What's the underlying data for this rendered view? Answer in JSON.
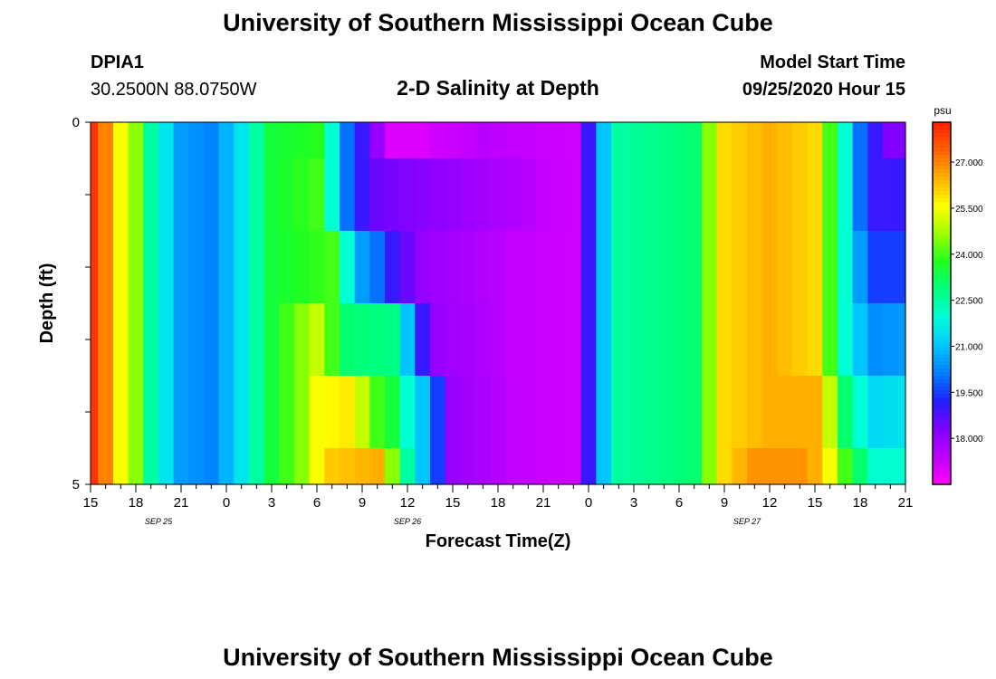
{
  "page": {
    "title_top": "University of Southern Mississippi Ocean Cube",
    "title_bottom": "University of Southern Mississippi Ocean Cube",
    "station_id": "DPIA1",
    "coordinates": "30.2500N 88.0750W",
    "plot_title": "2-D Salinity at Depth",
    "model_start_label": "Model Start Time",
    "model_start_value": "09/25/2020 Hour 15"
  },
  "chart_data": {
    "type": "heatmap",
    "title": "2-D Salinity at Depth",
    "xlabel": "Forecast Time(Z)",
    "ylabel": "Depth (ft)",
    "units": "psu",
    "y_ticks": [
      "0",
      "5"
    ],
    "x_tick_labels": [
      "15",
      "18",
      "21",
      "0",
      "3",
      "6",
      "9",
      "12",
      "15",
      "18",
      "21",
      "0",
      "3",
      "6",
      "9",
      "12",
      "15",
      "18",
      "21"
    ],
    "date_labels": [
      {
        "label": "SEP 25",
        "hour_index": 4.5
      },
      {
        "label": "SEP 26",
        "hour_index": 21
      },
      {
        "label": "SEP 27",
        "hour_index": 43.5
      }
    ],
    "hours": 55,
    "colorbar": {
      "min": 16.5,
      "max": 28.3,
      "ticks": [
        "27.000",
        "25.500",
        "24.000",
        "22.500",
        "21.000",
        "19.500",
        "18.000"
      ],
      "tick_values": [
        27.0,
        25.5,
        24.0,
        22.5,
        21.0,
        19.5,
        18.0
      ]
    },
    "depth_layers": [
      {
        "depth": "0.25",
        "keyframes": [
          [
            0,
            28
          ],
          [
            1,
            27
          ],
          [
            2,
            25.5
          ],
          [
            3,
            24.5
          ],
          [
            4,
            22.5
          ],
          [
            5,
            21.5
          ],
          [
            6,
            20.5
          ],
          [
            8,
            20.2
          ],
          [
            9,
            20.8
          ],
          [
            10,
            21.5
          ],
          [
            11,
            22.5
          ],
          [
            12,
            23.5
          ],
          [
            15,
            23.8
          ],
          [
            16,
            22
          ],
          [
            17,
            20
          ],
          [
            18,
            19
          ],
          [
            20,
            17
          ],
          [
            22,
            17
          ],
          [
            23,
            17.2
          ],
          [
            26,
            17.5
          ],
          [
            32,
            17.2
          ],
          [
            33,
            19
          ],
          [
            34,
            21
          ],
          [
            35,
            22.5
          ],
          [
            40,
            23
          ],
          [
            41,
            24.5
          ],
          [
            42,
            26
          ],
          [
            45,
            26.5
          ],
          [
            48,
            26
          ],
          [
            49,
            24
          ],
          [
            50,
            22
          ],
          [
            51,
            20
          ],
          [
            52,
            19
          ],
          [
            53,
            18.3
          ],
          [
            54,
            18.3
          ]
        ]
      },
      {
        "depth": "1.0",
        "keyframes": [
          [
            0,
            28
          ],
          [
            1,
            27
          ],
          [
            2,
            25.5
          ],
          [
            3,
            24.5
          ],
          [
            4,
            22.5
          ],
          [
            5,
            21.5
          ],
          [
            6,
            20.5
          ],
          [
            8,
            20.2
          ],
          [
            9,
            20.8
          ],
          [
            10,
            21.5
          ],
          [
            11,
            22.5
          ],
          [
            12,
            23.5
          ],
          [
            15,
            24
          ],
          [
            16,
            22
          ],
          [
            17,
            20
          ],
          [
            18,
            19
          ],
          [
            19,
            18.5
          ],
          [
            32,
            17.2
          ],
          [
            33,
            19
          ],
          [
            34,
            21
          ],
          [
            35,
            22.5
          ],
          [
            40,
            23
          ],
          [
            41,
            24.5
          ],
          [
            42,
            26
          ],
          [
            45,
            26.5
          ],
          [
            48,
            26
          ],
          [
            49,
            24
          ],
          [
            50,
            22
          ],
          [
            51,
            20
          ],
          [
            52,
            19
          ],
          [
            54,
            19
          ]
        ]
      },
      {
        "depth": "2.0",
        "keyframes": [
          [
            0,
            28
          ],
          [
            1,
            27
          ],
          [
            2,
            25.5
          ],
          [
            3,
            24.5
          ],
          [
            4,
            22.5
          ],
          [
            5,
            21.5
          ],
          [
            6,
            20.5
          ],
          [
            8,
            20.2
          ],
          [
            9,
            20.8
          ],
          [
            10,
            21.5
          ],
          [
            11,
            22.5
          ],
          [
            12,
            23.5
          ],
          [
            16,
            24
          ],
          [
            17,
            22
          ],
          [
            18,
            20.5
          ],
          [
            19,
            20
          ],
          [
            20,
            19
          ],
          [
            22,
            18
          ],
          [
            28,
            17.4
          ],
          [
            32,
            17.2
          ],
          [
            33,
            19
          ],
          [
            34,
            21
          ],
          [
            35,
            22.5
          ],
          [
            40,
            23
          ],
          [
            41,
            24.5
          ],
          [
            42,
            26
          ],
          [
            45,
            26.5
          ],
          [
            48,
            26
          ],
          [
            49,
            24
          ],
          [
            50,
            22
          ],
          [
            51,
            20.5
          ],
          [
            52,
            19.5
          ],
          [
            54,
            19.5
          ]
        ]
      },
      {
        "depth": "3.0",
        "keyframes": [
          [
            0,
            28
          ],
          [
            1,
            27
          ],
          [
            2,
            25.5
          ],
          [
            3,
            24.5
          ],
          [
            4,
            22.5
          ],
          [
            5,
            21.5
          ],
          [
            6,
            20.5
          ],
          [
            8,
            20.2
          ],
          [
            9,
            20.8
          ],
          [
            10,
            21.5
          ],
          [
            11,
            22.5
          ],
          [
            12,
            23.5
          ],
          [
            14,
            24.5
          ],
          [
            15,
            25
          ],
          [
            16,
            24
          ],
          [
            17,
            23
          ],
          [
            20,
            22.8
          ],
          [
            21,
            21
          ],
          [
            22,
            19
          ],
          [
            23,
            18
          ],
          [
            28,
            17.4
          ],
          [
            32,
            17.2
          ],
          [
            33,
            19
          ],
          [
            34,
            21
          ],
          [
            35,
            22.5
          ],
          [
            40,
            23
          ],
          [
            41,
            24.5
          ],
          [
            42,
            26
          ],
          [
            45,
            26.5
          ],
          [
            48,
            26
          ],
          [
            49,
            24
          ],
          [
            50,
            22
          ],
          [
            51,
            21
          ],
          [
            52,
            20.3
          ],
          [
            54,
            20.5
          ]
        ]
      },
      {
        "depth": "4.0",
        "keyframes": [
          [
            0,
            28
          ],
          [
            1,
            27
          ],
          [
            2,
            25.5
          ],
          [
            3,
            24.5
          ],
          [
            4,
            22.5
          ],
          [
            5,
            21.5
          ],
          [
            6,
            20.5
          ],
          [
            8,
            20.2
          ],
          [
            9,
            20.8
          ],
          [
            10,
            21.5
          ],
          [
            11,
            22.5
          ],
          [
            12,
            23.5
          ],
          [
            14,
            24.5
          ],
          [
            15,
            25.5
          ],
          [
            17,
            25.8
          ],
          [
            18,
            25
          ],
          [
            19,
            24
          ],
          [
            20,
            23.5
          ],
          [
            21,
            22
          ],
          [
            22,
            21
          ],
          [
            23,
            19.5
          ],
          [
            24,
            18
          ],
          [
            28,
            17.4
          ],
          [
            32,
            17.2
          ],
          [
            33,
            19
          ],
          [
            34,
            21
          ],
          [
            35,
            22.5
          ],
          [
            40,
            23
          ],
          [
            41,
            24.5
          ],
          [
            42,
            26
          ],
          [
            45,
            26.5
          ],
          [
            48,
            26.5
          ],
          [
            49,
            25
          ],
          [
            50,
            23
          ],
          [
            51,
            22
          ],
          [
            52,
            21.3
          ],
          [
            54,
            21.5
          ]
        ]
      },
      {
        "depth": "5.0",
        "keyframes": [
          [
            0,
            28
          ],
          [
            1,
            27
          ],
          [
            2,
            25.5
          ],
          [
            3,
            24.5
          ],
          [
            4,
            22.5
          ],
          [
            5,
            21.5
          ],
          [
            6,
            20.5
          ],
          [
            8,
            20.2
          ],
          [
            9,
            20.8
          ],
          [
            10,
            21.5
          ],
          [
            11,
            22.5
          ],
          [
            12,
            23.5
          ],
          [
            14,
            24.5
          ],
          [
            15,
            25.5
          ],
          [
            16,
            26.2
          ],
          [
            19,
            26.5
          ],
          [
            20,
            24.5
          ],
          [
            21,
            22.5
          ],
          [
            22,
            21
          ],
          [
            23,
            19.5
          ],
          [
            24,
            18
          ],
          [
            28,
            17.4
          ],
          [
            32,
            17.2
          ],
          [
            33,
            19
          ],
          [
            34,
            21
          ],
          [
            35,
            22.5
          ],
          [
            40,
            23
          ],
          [
            41,
            24.5
          ],
          [
            42,
            26
          ],
          [
            44,
            26.8
          ],
          [
            47,
            26.8
          ],
          [
            48,
            26.5
          ],
          [
            49,
            25.5
          ],
          [
            50,
            24
          ],
          [
            51,
            23
          ],
          [
            52,
            22
          ],
          [
            54,
            22
          ]
        ]
      }
    ]
  },
  "colors": {
    "colormap": [
      "#ff00ff",
      "#c000ff",
      "#8000ff",
      "#2020ff",
      "#0080ff",
      "#00c8ff",
      "#00ffd8",
      "#00ff80",
      "#20ff20",
      "#a0ff00",
      "#ffff00",
      "#ffb000",
      "#ff6000",
      "#ff2000"
    ]
  }
}
